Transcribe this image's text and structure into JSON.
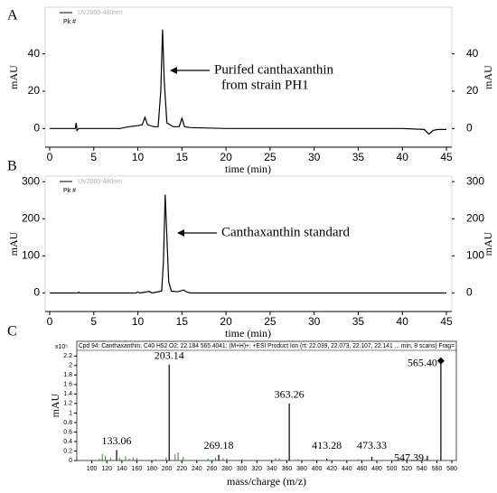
{
  "chart_data": [
    {
      "type": "line",
      "panel": "A",
      "legend": "Pk #",
      "legend_sub": "UV2000-480nm",
      "annotation": [
        "Purifed canthaxanthin",
        "from strain PH1"
      ],
      "xlabel": "time (min)",
      "ylabel": "mAU",
      "y2label": "mAU",
      "color": "#000000",
      "x": [
        0,
        2.9,
        3.0,
        3.1,
        3.3,
        8,
        9,
        10,
        10.5,
        10.8,
        11.1,
        11.8,
        12.3,
        12.6,
        12.8,
        13.0,
        13.3,
        14,
        14.7,
        15,
        15.3,
        16,
        20,
        30,
        40,
        42.5,
        43,
        43.5,
        44,
        45
      ],
      "values": [
        0,
        0,
        3,
        -1,
        0,
        0,
        1,
        1.5,
        2,
        6,
        2,
        1,
        1,
        20,
        53,
        25,
        3,
        1,
        1,
        5.5,
        1,
        0.5,
        0,
        0,
        0,
        -0.5,
        -3,
        -1,
        -0.5,
        -0.5
      ],
      "xlim": [
        0,
        45
      ],
      "xticks": [
        0,
        5,
        10,
        15,
        20,
        25,
        30,
        35,
        40,
        45
      ],
      "ylim": [
        -10,
        65
      ],
      "yticks": [
        0,
        20,
        40
      ],
      "y2lim": [
        -10,
        65
      ],
      "y2ticks": [
        0,
        20,
        40
      ]
    },
    {
      "type": "line",
      "panel": "B",
      "legend": "Pk #",
      "legend_sub": "UV2000-480nm",
      "annotation": [
        "Canthaxanthin standard"
      ],
      "xlabel": "time (min)",
      "ylabel": "mAU",
      "y2label": "mAU",
      "color": "#000000",
      "x": [
        0,
        3.2,
        3.3,
        3.4,
        9.8,
        10,
        10.2,
        11.3,
        11.6,
        12.7,
        12.9,
        13.1,
        13.3,
        13.5,
        13.8,
        14.5,
        15.2,
        15.5,
        16,
        45
      ],
      "values": [
        0,
        0,
        2,
        0,
        0,
        3,
        0,
        4,
        0,
        5,
        80,
        265,
        150,
        30,
        5,
        3,
        8,
        3,
        0,
        0
      ],
      "xlim": [
        0,
        45
      ],
      "xticks": [
        0,
        5,
        10,
        15,
        20,
        25,
        30,
        35,
        40,
        45
      ],
      "ylim": [
        -50,
        315
      ],
      "yticks": [
        0,
        100,
        200,
        300
      ],
      "y2lim": [
        -50,
        315
      ],
      "y2ticks": [
        0,
        100,
        200,
        300
      ]
    },
    {
      "type": "spectrum",
      "panel": "C",
      "header": "Cpd 94: Canthaxanthin; C40 H52 O2; 22.184 565.4041: (M+H)+: +ESI Product Ion (rt: 22.039, 22.073, 22.107, 22.141 ... min, 8 scans) Frag=",
      "yscale_label": "x10⁵",
      "xlabel": "mass/charge (m/z)",
      "ylabel": "mAU",
      "color": "#000000",
      "x": [
        133.06,
        203.14,
        269.18,
        363.26,
        413.28,
        473.33,
        547.39,
        565.4
      ],
      "x_labels": [
        "133.06",
        "203.14",
        "269.18",
        "363.26",
        "413.28",
        "473.33",
        "547.39",
        "565.40"
      ],
      "values": [
        0.22,
        2.02,
        0.12,
        1.2,
        0.04,
        0.08,
        0.1,
        2.1
      ],
      "minor_peaks": {
        "color": "#2e8b2e",
        "x": [
          110,
          114,
          118,
          125,
          137,
          145,
          150,
          155,
          160,
          185,
          199,
          211,
          215,
          222,
          255,
          265,
          275,
          280,
          300,
          345,
          350,
          375,
          395,
          455,
          520,
          545
        ],
        "values": [
          0.04,
          0.14,
          0.1,
          0.05,
          0.06,
          0.09,
          0.04,
          0.07,
          0.05,
          0.03,
          0.06,
          0.13,
          0.17,
          0.08,
          0.04,
          0.06,
          0.05,
          0.04,
          0.03,
          0.05,
          0.04,
          0.03,
          0.02,
          0.03,
          0.04,
          0.03
        ]
      },
      "xlim": [
        80,
        586
      ],
      "xticks": [
        100,
        120,
        140,
        160,
        180,
        200,
        220,
        240,
        260,
        280,
        300,
        320,
        340,
        360,
        380,
        400,
        420,
        440,
        460,
        480,
        500,
        520,
        540,
        560,
        580
      ],
      "ylim": [
        0,
        2.32
      ],
      "yticks": [
        0,
        0.2,
        0.4,
        0.6,
        0.8,
        1,
        1.2,
        1.4,
        1.6,
        1.8,
        2,
        2.2
      ]
    }
  ]
}
